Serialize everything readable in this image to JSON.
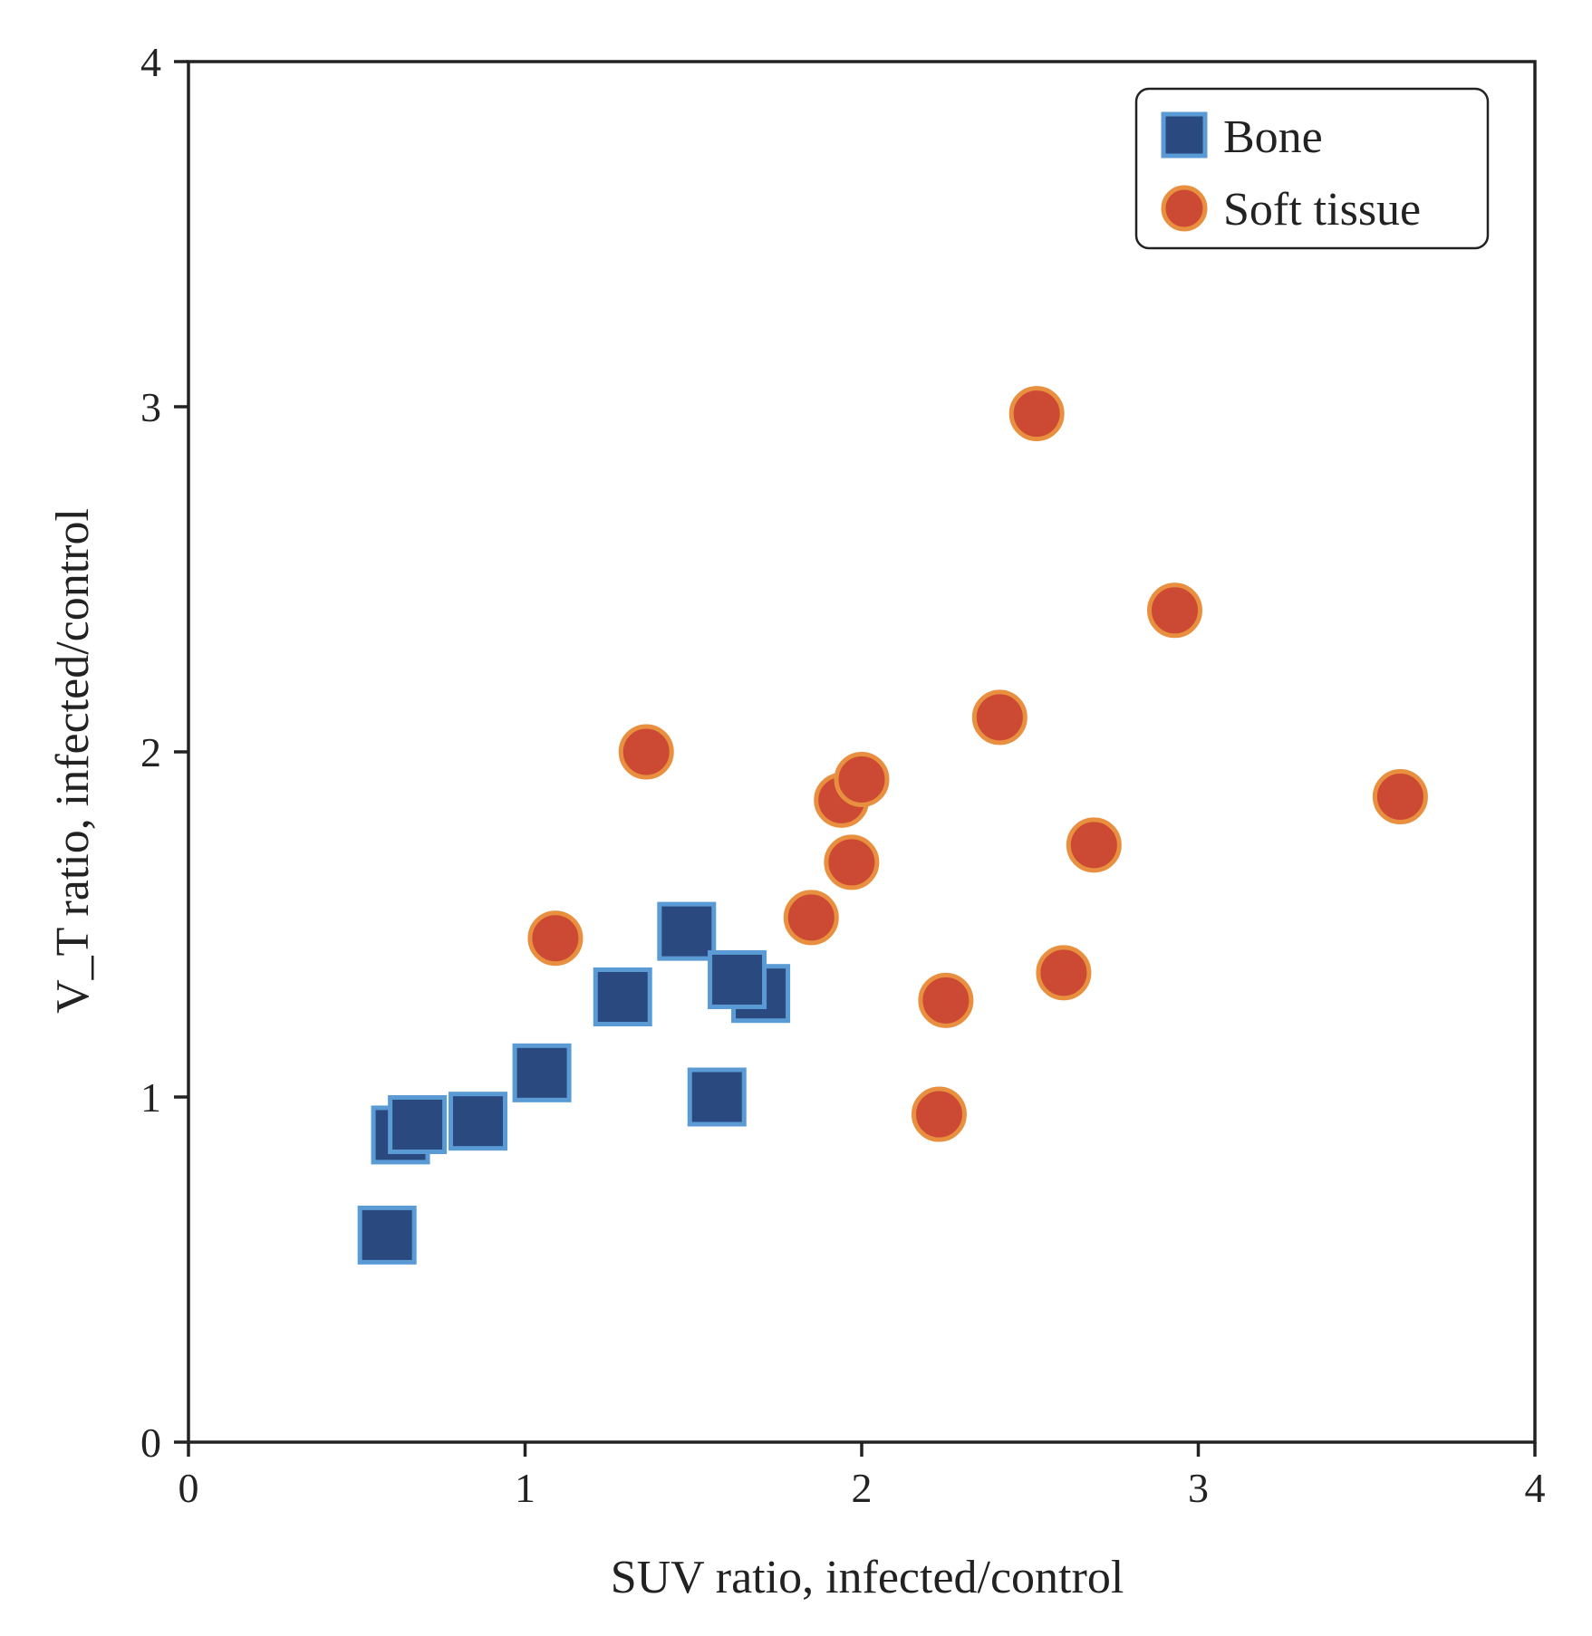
{
  "chart_data": {
    "type": "scatter",
    "xlabel": "SUV ratio, infected/control",
    "ylabel": "V_T ratio, infected/control",
    "xlim": [
      0,
      4
    ],
    "ylim": [
      0,
      4
    ],
    "x_ticks": [
      0,
      1,
      2,
      3,
      4
    ],
    "y_ticks": [
      0,
      1,
      2,
      3,
      4
    ],
    "grid": false,
    "legend_position": "top-right",
    "series": [
      {
        "name": "Bone",
        "marker": "square",
        "fill_color": "#2a4a7f",
        "edge_color": "#5b9bd5",
        "points": [
          {
            "x": 0.59,
            "y": 0.6
          },
          {
            "x": 0.63,
            "y": 0.89
          },
          {
            "x": 0.68,
            "y": 0.92
          },
          {
            "x": 0.86,
            "y": 0.93
          },
          {
            "x": 1.05,
            "y": 1.07
          },
          {
            "x": 1.29,
            "y": 1.29
          },
          {
            "x": 1.48,
            "y": 1.48
          },
          {
            "x": 1.57,
            "y": 1.0
          },
          {
            "x": 1.7,
            "y": 1.3
          },
          {
            "x": 1.63,
            "y": 1.34
          }
        ]
      },
      {
        "name": "Soft tissue",
        "marker": "circle",
        "fill_color": "#cc4a33",
        "edge_color": "#e8903f",
        "points": [
          {
            "x": 1.09,
            "y": 1.46
          },
          {
            "x": 1.36,
            "y": 2.0
          },
          {
            "x": 1.85,
            "y": 1.52
          },
          {
            "x": 1.94,
            "y": 1.86
          },
          {
            "x": 1.97,
            "y": 1.68
          },
          {
            "x": 2.0,
            "y": 1.92
          },
          {
            "x": 2.23,
            "y": 0.95
          },
          {
            "x": 2.25,
            "y": 1.28
          },
          {
            "x": 2.41,
            "y": 2.1
          },
          {
            "x": 2.52,
            "y": 2.98
          },
          {
            "x": 2.6,
            "y": 1.36
          },
          {
            "x": 2.69,
            "y": 1.73
          },
          {
            "x": 2.93,
            "y": 2.41
          },
          {
            "x": 3.6,
            "y": 1.87
          }
        ]
      }
    ]
  }
}
